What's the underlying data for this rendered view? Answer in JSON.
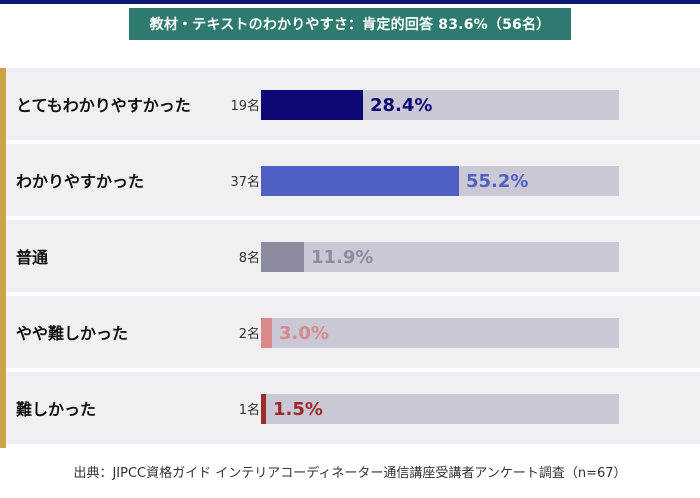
{
  "title": "教材・テキストのわかりやすさ：肯定的回答 83.6%（56名）",
  "source": "出典：JIPCC資格ガイド インテリアコーディネーター通信講座受講者アンケート調査（n=67）",
  "colors": {
    "title_bg": "#2f7a6e",
    "accent": "#c9a44a",
    "track": "#c9c8d4"
  },
  "chart_data": {
    "type": "bar",
    "orientation": "horizontal",
    "categories": [
      "とてもわかりやすかった",
      "わかりやすかった",
      "普通",
      "やや難しかった",
      "難しかった"
    ],
    "counts": [
      "19名",
      "37名",
      "8名",
      "2名",
      "1名"
    ],
    "values": [
      28.4,
      55.2,
      11.9,
      3.0,
      1.5
    ],
    "value_labels": [
      "28.4%",
      "55.2%",
      "11.9%",
      "3.0%",
      "1.5%"
    ],
    "series_colors": [
      "#0d0875",
      "#4f5fc4",
      "#8c8b9f",
      "#d9888b",
      "#9c2b2b"
    ],
    "xlim": [
      0,
      100
    ],
    "grid": false,
    "legend": "none"
  }
}
